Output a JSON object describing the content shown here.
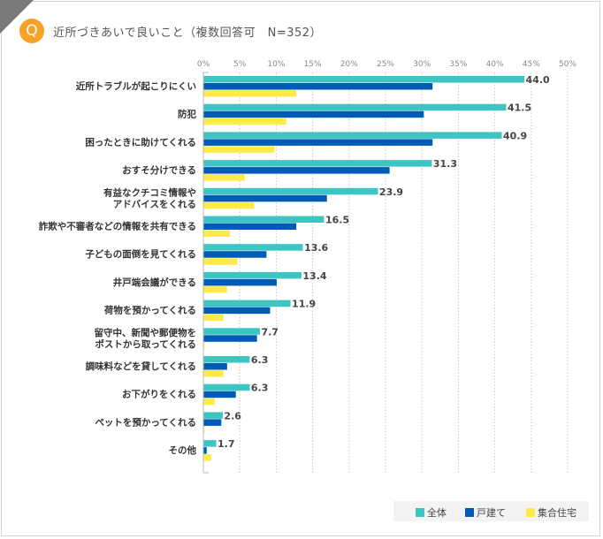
{
  "header": {
    "badge": "Q",
    "title": "近所づきあいで良いこと（複数回答可　N=352）"
  },
  "colors": {
    "全体": "#3ec4c2",
    "戸建て": "#005bb5",
    "集合住宅": "#ffeb48",
    "badge": "#f5a227"
  },
  "chart_data": {
    "type": "bar",
    "orientation": "horizontal",
    "title": "近所づきあいで良いこと（複数回答可　N=352）",
    "xlim": [
      0,
      50
    ],
    "xticks": [
      "0%",
      "5%",
      "10%",
      "15%",
      "20%",
      "25%",
      "30%",
      "35%",
      "40%",
      "45%",
      "50%"
    ],
    "grid": true,
    "legend_position": "bottom-right",
    "categories": [
      "近所トラブルが起こりにくい",
      "防犯",
      "困ったときに助けてくれる",
      "おすそ分けできる",
      "有益なクチコミ情報や\nアドバイスをくれる",
      "詐欺や不審者などの情報を共有できる",
      "子どもの面倒を見てくれる",
      "井戸端会議ができる",
      "荷物を預かってくれる",
      "留守中、新聞や郵便物を\nポストから取ってくれる",
      "調味料などを貸してくれる",
      "お下がりをくれる",
      "ペットを預かってくれる",
      "その他"
    ],
    "series": [
      {
        "name": "全体",
        "values": [
          44.0,
          41.5,
          40.9,
          31.3,
          23.9,
          16.5,
          13.6,
          13.4,
          11.9,
          7.7,
          6.3,
          6.3,
          2.6,
          1.7
        ],
        "labels": [
          "44.0",
          "41.5",
          "40.9",
          "31.3",
          "23.9",
          "16.5",
          "13.6",
          "13.4",
          "11.9",
          "7.7",
          "6.3",
          "6.3",
          "2.6",
          "1.7"
        ]
      },
      {
        "name": "戸建て",
        "values": [
          31.4,
          30.2,
          31.4,
          25.5,
          16.9,
          12.7,
          8.6,
          10.0,
          9.1,
          7.3,
          3.2,
          4.4,
          2.4,
          0.4
        ]
      },
      {
        "name": "集合住宅",
        "values": [
          12.7,
          11.3,
          9.7,
          5.6,
          6.9,
          3.6,
          4.6,
          3.2,
          2.7,
          0.1,
          2.7,
          1.5,
          0.1,
          1.0
        ]
      }
    ]
  }
}
